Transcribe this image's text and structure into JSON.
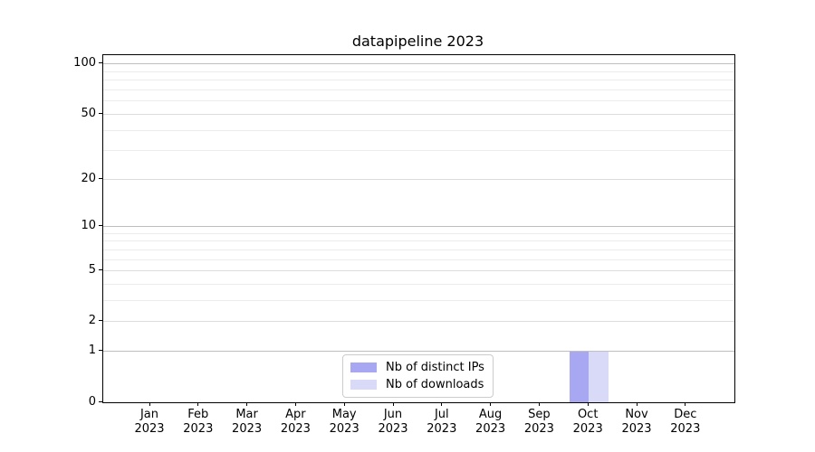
{
  "title": "datapipeline 2023",
  "chart_data": {
    "type": "bar",
    "title": "datapipeline 2023",
    "categories": [
      "Jan",
      "Feb",
      "Mar",
      "Apr",
      "May",
      "Jun",
      "Jul",
      "Aug",
      "Sep",
      "Oct",
      "Nov",
      "Dec"
    ],
    "category_year": "2023",
    "series": [
      {
        "name": "Nb of distinct IPs",
        "color": "#a8a8f2",
        "values": [
          0,
          0,
          0,
          0,
          0,
          0,
          0,
          0,
          0,
          1,
          0,
          0
        ]
      },
      {
        "name": "Nb of downloads",
        "color": "#d9d9f8",
        "values": [
          0,
          0,
          0,
          0,
          0,
          0,
          0,
          0,
          0,
          1,
          0,
          0
        ]
      }
    ],
    "xlabel": "",
    "ylabel": "",
    "y_axis": {
      "scale": "log1p",
      "tick_labels": [
        0,
        1,
        2,
        5,
        10,
        20,
        50,
        100
      ],
      "major_gridlines": [
        1,
        10,
        100
      ],
      "mid_gridlines": [
        2,
        5,
        20,
        50
      ],
      "minor_gridlines": [
        3,
        4,
        6,
        7,
        8,
        9,
        30,
        40,
        60,
        70,
        80,
        90
      ],
      "ylim": [
        0,
        115
      ],
      "grid": true
    },
    "legend": {
      "entries": [
        "Nb of distinct IPs",
        "Nb of downloads"
      ],
      "position": "lower center"
    },
    "colors": {
      "background": "#ffffff",
      "spine": "#000000",
      "grid_major": "#bfbfbf",
      "grid_mid": "#dcdcdc",
      "grid_minor": "#ececec",
      "text": "#000000"
    }
  }
}
